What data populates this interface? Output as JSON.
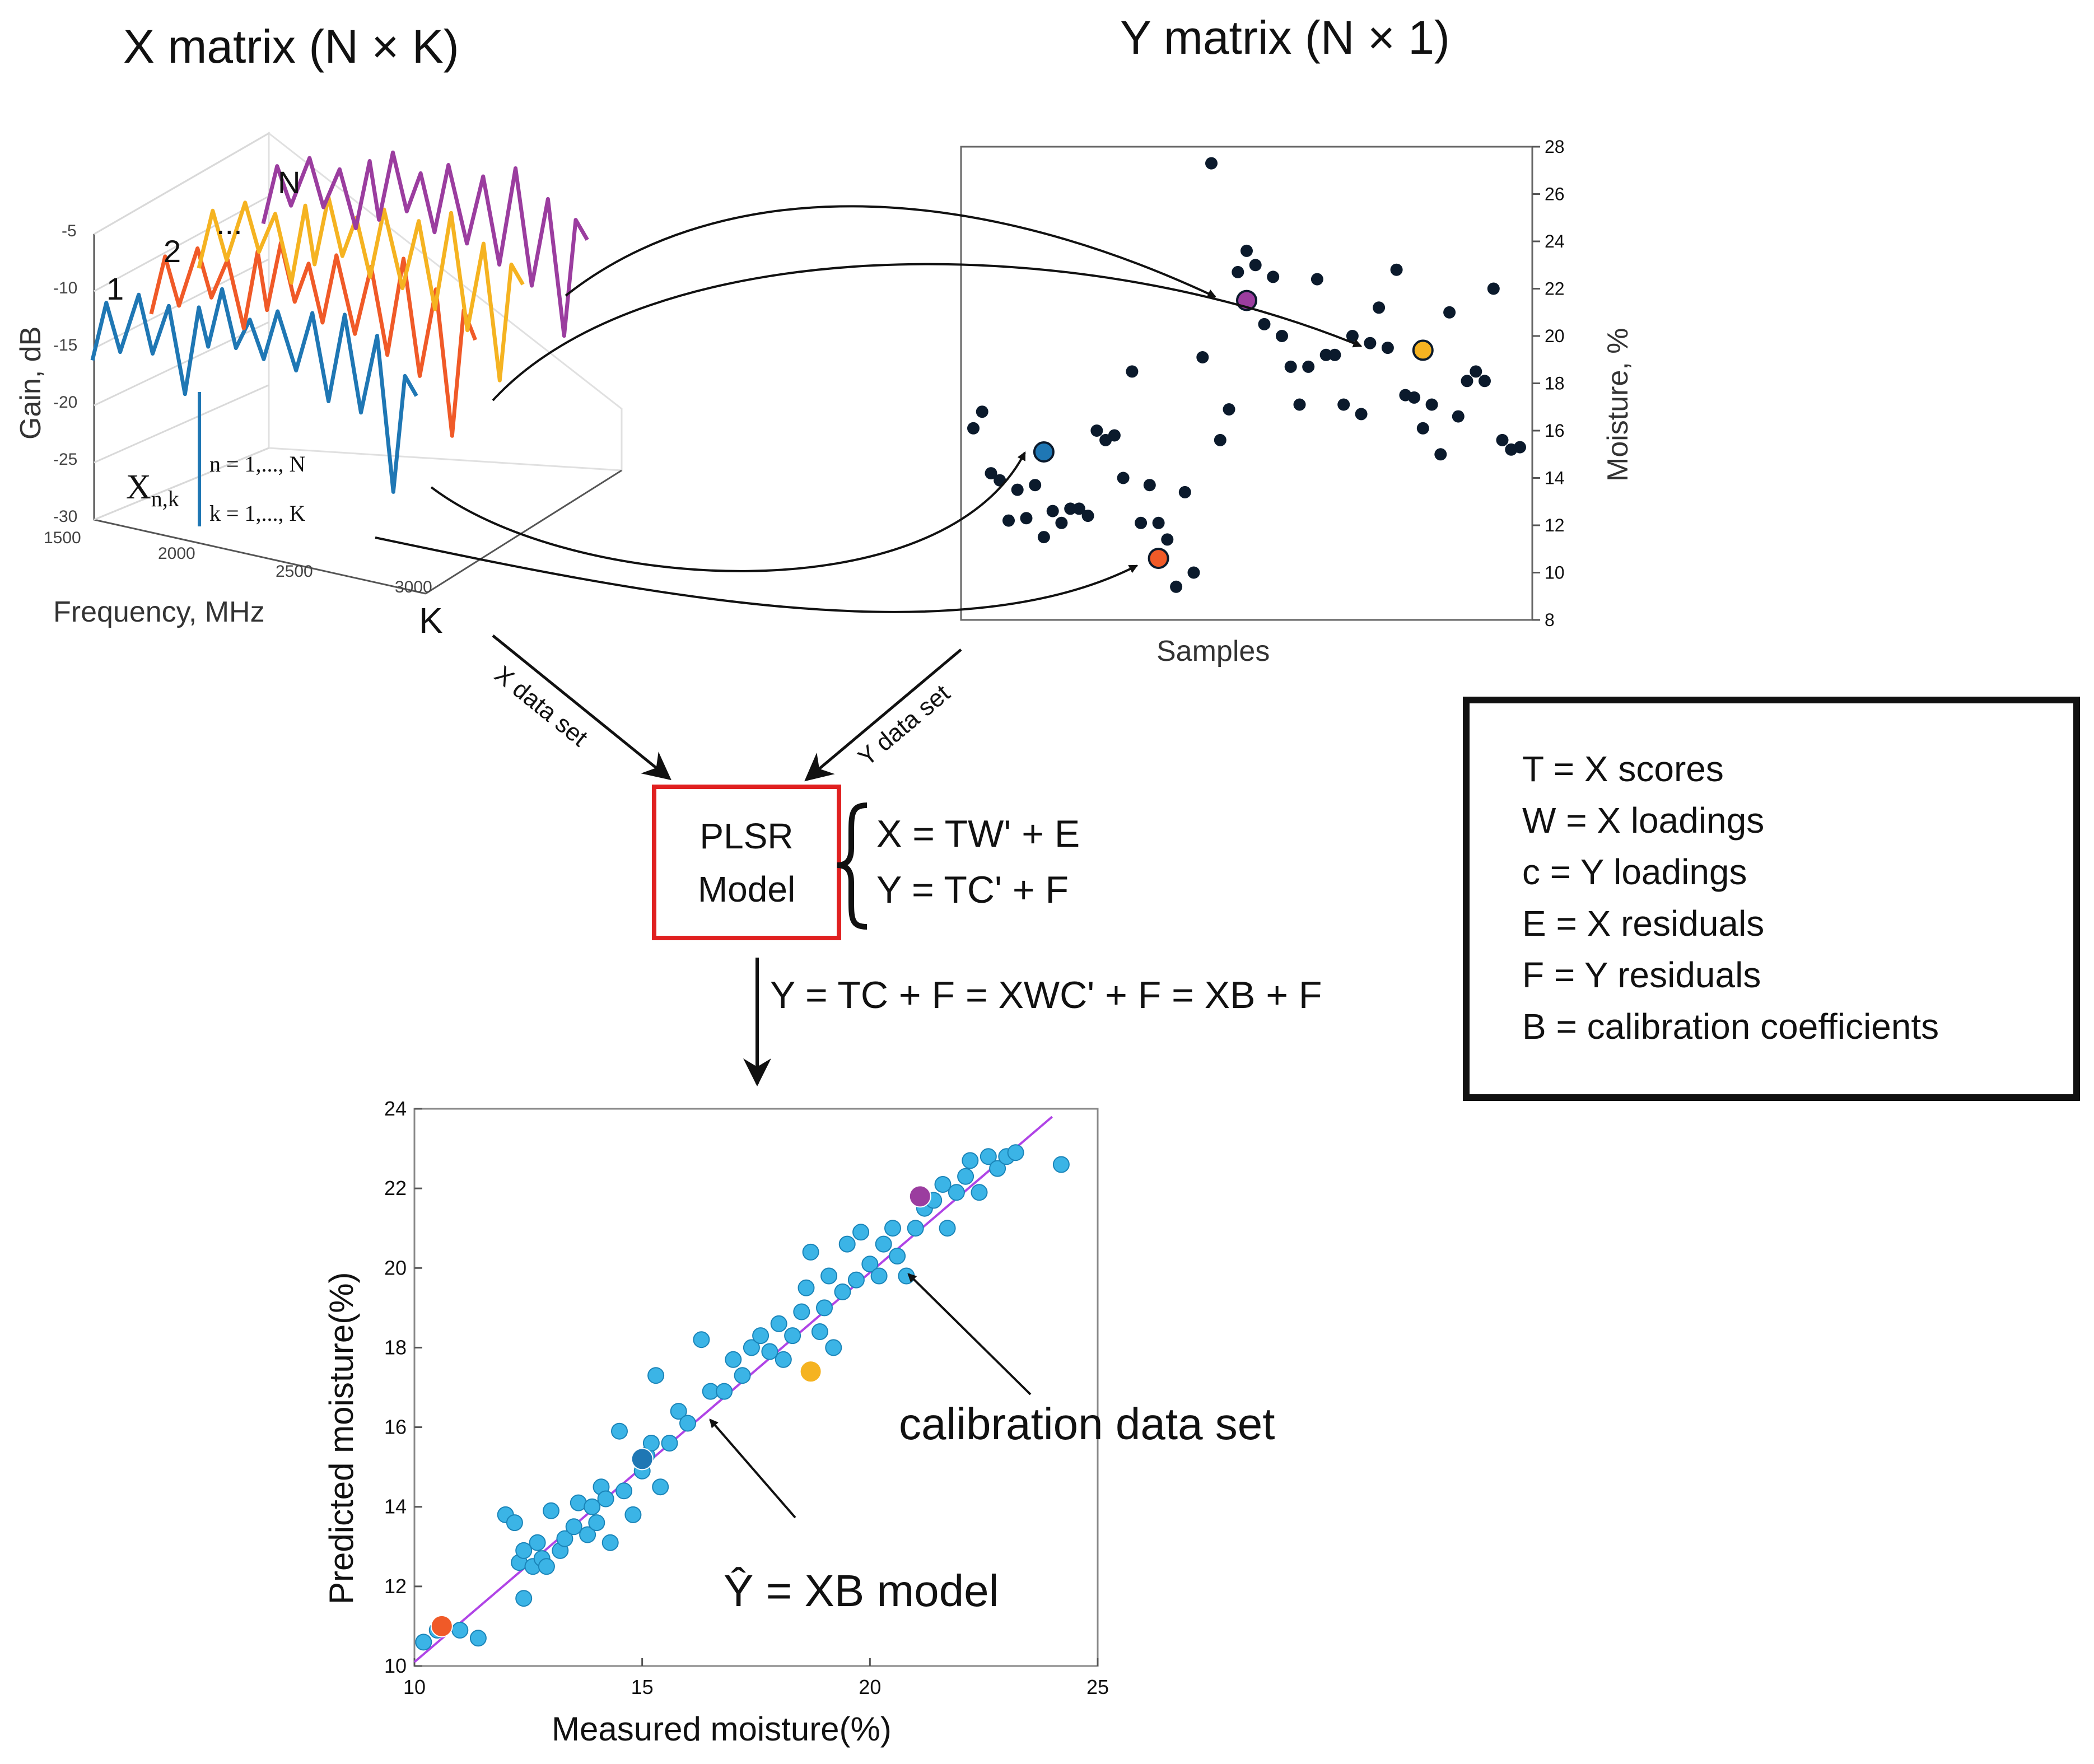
{
  "titles": {
    "x_matrix": "X matrix (N × K)",
    "y_matrix": "Y matrix (N × 1)"
  },
  "spectra_plot": {
    "zlabel": "Gain, dB",
    "xlabel": "Frequency, MHz",
    "z_ticks": [
      "-5",
      "-10",
      "-15",
      "-20",
      "-25",
      "-30"
    ],
    "x_ticks": [
      "1500",
      "2000",
      "2500",
      "3000"
    ],
    "series_labels": [
      "1",
      "2",
      "...",
      "N"
    ],
    "k_axis_label": "K",
    "element_label": "X",
    "element_subscript": "n,k",
    "index_n": "n = 1,..., N",
    "index_k": "k = 1,..., K",
    "series_colors": [
      "#1f77b4",
      "#f05a28",
      "#f5b321",
      "#9b3d9f"
    ]
  },
  "samples_plot": {
    "xlabel": "Samples",
    "ylabel": "Moisture, %",
    "y_ticks": [
      "28",
      "26",
      "24",
      "22",
      "20",
      "18",
      "16",
      "14",
      "12",
      "10",
      "8"
    ]
  },
  "arrows": {
    "x_data_set": "X data set",
    "y_data_set": "Y data set"
  },
  "model": {
    "line1": "PLSR",
    "line2": "Model",
    "eq1": "X = TW' + E",
    "eq2": "Y = TC' + F",
    "border_color": "#e02020"
  },
  "derivation": "Y = TC + F = XWC' + F = XB + F",
  "legend": {
    "items": [
      "T = X scores",
      "W = X loadings",
      "c = Y loadings",
      "E = X residuals",
      "F = Y residuals",
      "B = calibration coefficients"
    ]
  },
  "annotations": {
    "calibration": "calibration data set",
    "model": "Ŷ = XB model"
  },
  "chart_data": [
    {
      "type": "line",
      "title": "X matrix (N × K)",
      "xlabel": "Frequency, MHz",
      "ylabel": "Gain, dB",
      "xlim": [
        1500,
        3000
      ],
      "ylim": [
        -30,
        -5
      ],
      "series": [
        {
          "name": "1",
          "x": [
            1500,
            1560,
            1620,
            1700,
            1760,
            1830,
            1900,
            1960,
            2000,
            2060,
            2120,
            2180,
            2240,
            2300,
            2380,
            2450,
            2520,
            2590,
            2660,
            2730,
            2800,
            2850,
            2900
          ],
          "values": [
            -18,
            -12,
            -17,
            -11,
            -17,
            -12,
            -21,
            -12,
            -16,
            -10,
            -16,
            -13,
            -17,
            -12,
            -18,
            -12,
            -21,
            -12,
            -22,
            -14,
            -30,
            -18,
            -20
          ]
        },
        {
          "name": "2",
          "x": [
            1500,
            1560,
            1620,
            1700,
            1760,
            1830,
            1900,
            1960,
            2000,
            2060,
            2120,
            2180,
            2240,
            2300,
            2380,
            2450,
            2520,
            2590,
            2660,
            2730,
            2800,
            2850,
            2900
          ],
          "values": [
            -16,
            -10,
            -15,
            -9,
            -14,
            -10,
            -17,
            -9,
            -15,
            -8,
            -14,
            -10,
            -16,
            -9,
            -17,
            -10,
            -19,
            -9,
            -21,
            -12,
            -27,
            -14,
            -17
          ]
        },
        {
          "name": "...",
          "x": [
            1500,
            1560,
            1620,
            1700,
            1760,
            1830,
            1900,
            1960,
            2000,
            2060,
            2120,
            2180,
            2240,
            2300,
            2380,
            2450,
            2520,
            2590,
            2660,
            2730,
            2800,
            2850,
            2900
          ],
          "values": [
            -14,
            -8,
            -13,
            -7,
            -12,
            -8,
            -15,
            -7,
            -13,
            -6,
            -12,
            -8,
            -14,
            -7,
            -15,
            -8,
            -17,
            -7,
            -19,
            -10,
            -24,
            -12,
            -14
          ]
        },
        {
          "name": "N",
          "x": [
            1500,
            1560,
            1620,
            1700,
            1760,
            1830,
            1900,
            1960,
            2000,
            2060,
            2120,
            2180,
            2240,
            2300,
            2380,
            2450,
            2520,
            2590,
            2660,
            2730,
            2800,
            2850,
            2900
          ],
          "values": [
            -12,
            -6,
            -10,
            -5,
            -10,
            -6,
            -12,
            -5,
            -11,
            -4,
            -10,
            -6,
            -12,
            -5,
            -13,
            -6,
            -15,
            -5,
            -17,
            -8,
            -22,
            -10,
            -12
          ]
        }
      ]
    },
    {
      "type": "scatter",
      "title": "Y matrix (N × 1)",
      "xlabel": "Samples",
      "ylabel": "Moisture, %",
      "ylim": [
        8,
        28
      ],
      "values": [
        16.1,
        16.8,
        14.2,
        13.9,
        12.2,
        13.5,
        12.3,
        13.7,
        11.5,
        12.6,
        12.1,
        12.7,
        12.7,
        12.4,
        16,
        15.6,
        15.8,
        14,
        18.5,
        12.1,
        13.7,
        12.1,
        11.4,
        9.4,
        13.4,
        10,
        19.1,
        27.3,
        15.6,
        16.9,
        22.7,
        23.6,
        23,
        20.5,
        22.5,
        20,
        18.7,
        17.1,
        18.7,
        22.4,
        19.2,
        19.2,
        17.1,
        20,
        16.7,
        19.7,
        21.2,
        19.5,
        22.8,
        17.5,
        17.4,
        16.1,
        17.1,
        15,
        21,
        16.6,
        18.1,
        18.5,
        18.1,
        22,
        15.6,
        15.2,
        15.3
      ],
      "highlighted": [
        {
          "sample": 8,
          "value": 15.1,
          "color": "#1f77b4"
        },
        {
          "sample": 21,
          "value": 10.6,
          "color": "#f05a28"
        },
        {
          "sample": 31,
          "value": 21.5,
          "color": "#9b3d9f"
        },
        {
          "sample": 51,
          "value": 19.4,
          "color": "#f5b321"
        }
      ]
    },
    {
      "type": "scatter",
      "xlabel": "Measured moisture(%)",
      "ylabel": "Predicted moisture(%)",
      "xlim": [
        10,
        25
      ],
      "ylim": [
        10,
        24
      ],
      "x_ticks": [
        "10",
        "15",
        "20",
        "25"
      ],
      "y_ticks": [
        "24",
        "22",
        "20",
        "18",
        "16",
        "14",
        "12",
        "10"
      ],
      "fit_line": {
        "from": [
          10,
          10.1
        ],
        "to": [
          24,
          23.8
        ],
        "color": "#b044e6"
      },
      "point_color": "#3bb4e6",
      "points": [
        [
          10.2,
          10.6
        ],
        [
          10.5,
          10.9
        ],
        [
          11,
          10.9
        ],
        [
          11.4,
          10.7
        ],
        [
          12,
          13.8
        ],
        [
          12.2,
          13.6
        ],
        [
          12.3,
          12.6
        ],
        [
          12.4,
          11.7
        ],
        [
          12.4,
          12.9
        ],
        [
          12.6,
          12.5
        ],
        [
          12.7,
          13.1
        ],
        [
          12.8,
          12.7
        ],
        [
          12.9,
          12.5
        ],
        [
          13,
          13.9
        ],
        [
          13.2,
          12.9
        ],
        [
          13.3,
          13.2
        ],
        [
          13.5,
          13.5
        ],
        [
          13.6,
          14.1
        ],
        [
          13.8,
          13.3
        ],
        [
          13.9,
          14.0
        ],
        [
          14.0,
          13.6
        ],
        [
          14.1,
          14.5
        ],
        [
          14.2,
          14.2
        ],
        [
          14.3,
          13.1
        ],
        [
          14.5,
          15.9
        ],
        [
          14.6,
          14.4
        ],
        [
          14.8,
          13.8
        ],
        [
          15.0,
          14.9
        ],
        [
          15.1,
          15.3
        ],
        [
          15.2,
          15.6
        ],
        [
          15.3,
          17.3
        ],
        [
          15.4,
          14.5
        ],
        [
          15.6,
          15.6
        ],
        [
          15.8,
          16.4
        ],
        [
          16.0,
          16.1
        ],
        [
          16.3,
          18.2
        ],
        [
          16.5,
          16.9
        ],
        [
          16.8,
          16.9
        ],
        [
          17.0,
          17.7
        ],
        [
          17.2,
          17.3
        ],
        [
          17.4,
          18.0
        ],
        [
          17.6,
          18.3
        ],
        [
          17.8,
          17.9
        ],
        [
          18.0,
          18.6
        ],
        [
          18.1,
          17.7
        ],
        [
          18.3,
          18.3
        ],
        [
          18.5,
          18.9
        ],
        [
          18.6,
          19.5
        ],
        [
          18.7,
          20.4
        ],
        [
          18.9,
          18.4
        ],
        [
          19.0,
          19.0
        ],
        [
          19.1,
          19.8
        ],
        [
          19.2,
          18.0
        ],
        [
          19.4,
          19.4
        ],
        [
          19.5,
          20.6
        ],
        [
          19.7,
          19.7
        ],
        [
          19.8,
          20.9
        ],
        [
          20.0,
          20.1
        ],
        [
          20.2,
          19.8
        ],
        [
          20.3,
          20.6
        ],
        [
          20.5,
          21.0
        ],
        [
          20.6,
          20.3
        ],
        [
          20.8,
          19.8
        ],
        [
          21.0,
          21.0
        ],
        [
          21.2,
          21.5
        ],
        [
          21.4,
          21.7
        ],
        [
          21.6,
          22.1
        ],
        [
          21.7,
          21.0
        ],
        [
          21.9,
          21.9
        ],
        [
          22.1,
          22.3
        ],
        [
          22.2,
          22.7
        ],
        [
          22.4,
          21.9
        ],
        [
          22.6,
          22.8
        ],
        [
          22.8,
          22.5
        ],
        [
          23.0,
          22.8
        ],
        [
          23.2,
          22.9
        ],
        [
          24.2,
          22.6
        ]
      ],
      "highlighted": [
        {
          "x": 10.6,
          "y": 11.0,
          "color": "#f05a28"
        },
        {
          "x": 15.0,
          "y": 15.2,
          "color": "#1f77b4"
        },
        {
          "x": 18.7,
          "y": 17.4,
          "color": "#f5b321"
        },
        {
          "x": 21.1,
          "y": 21.8,
          "color": "#9b3d9f"
        }
      ]
    }
  ]
}
